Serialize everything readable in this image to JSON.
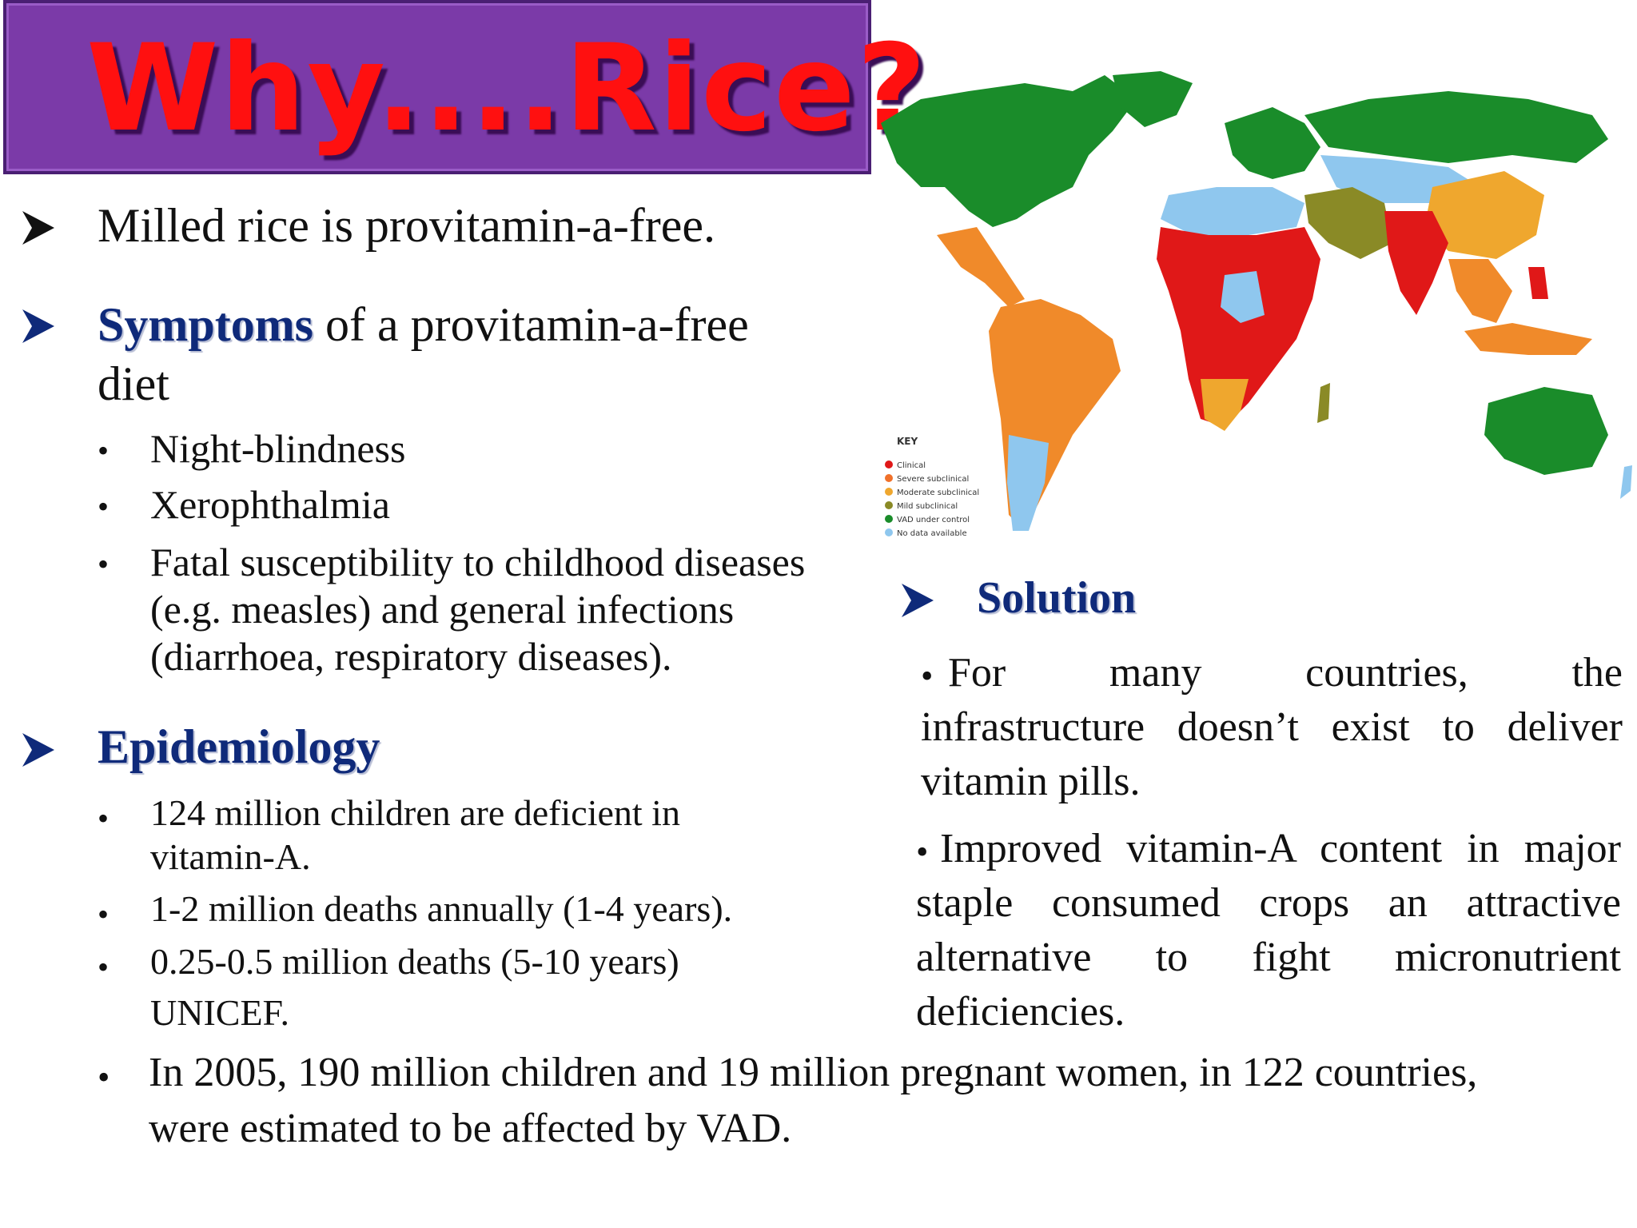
{
  "title": "Why....Rice?",
  "left": {
    "point1": "Milled rice is provitamin-a-free.",
    "symptoms": {
      "heading": "Symptoms",
      "rest_line1": " of a provitamin-a-free",
      "rest_line2": "diet",
      "items": [
        "Night-blindness",
        "Xerophthalmia",
        "Fatal susceptibility to childhood diseases",
        "(e.g. measles) and general infections",
        "(diarrhoea, respiratory diseases)."
      ]
    },
    "epidemiology": {
      "heading": "Epidemiology",
      "item1_line1": "124 million children are deficient in",
      "item1_line2": "vitamin-A.",
      "item2": "1-2 million deaths annually (1-4 years).",
      "item3_line1": "0.25-0.5 million deaths (5-10 years)",
      "item3_line2": "UNICEF."
    }
  },
  "map": {
    "key_title": "KEY",
    "key_items": [
      {
        "label": "Clinical",
        "color": "#e01818"
      },
      {
        "label": "Severe subclinical",
        "color": "#f0712a"
      },
      {
        "label": "Moderate subclinical",
        "color": "#efa72e"
      },
      {
        "label": "Mild subclinical",
        "color": "#8a8a26"
      },
      {
        "label": "VAD under control",
        "color": "#1a8c2a"
      },
      {
        "label": "No data available",
        "color": "#8fc7ee"
      }
    ]
  },
  "solution": {
    "heading": "Solution",
    "para1": [
      "For many countries, the",
      "infrastructure doesn’t exist to deliver",
      "vitamin pills."
    ],
    "para2": [
      "Improved vitamin-A content in major",
      "staple consumed crops an attractive",
      "alternative to fight micronutrient",
      "deficiencies."
    ]
  },
  "bottom": {
    "line1": "In 2005, 190 million children and 19 million pregnant women, in 122 countries,",
    "line2": "were estimated to be affected by VAD."
  },
  "colors": {
    "title_bg": "#7b3aa8",
    "title_text": "#ff1010",
    "heading_blue": "#0f2a7a"
  }
}
